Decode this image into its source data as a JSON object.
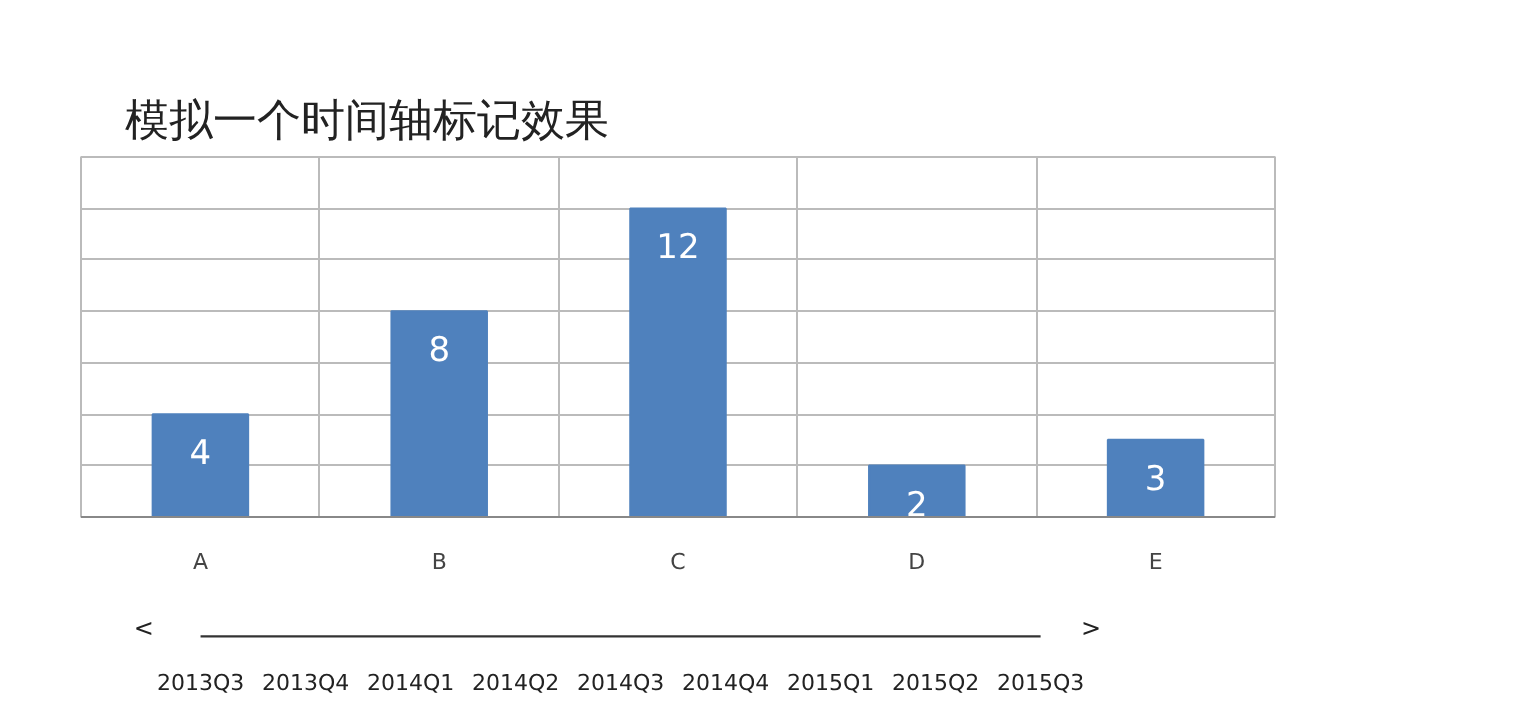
{
  "chart_data": [
    {
      "type": "bar",
      "title": "模拟一个时间轴标记效果",
      "categories": [
        "A",
        "B",
        "C",
        "D",
        "E"
      ],
      "values": [
        4,
        8,
        12,
        2,
        3
      ],
      "color": "#4f81bd",
      "data_labels": true,
      "ylim": [
        0,
        14
      ],
      "yticks": [
        {
          "value": 0,
          "label": null
        },
        {
          "value": 2,
          "label": null
        },
        {
          "value": 4,
          "label": null
        },
        {
          "value": 6,
          "label": null
        },
        {
          "value": 8,
          "label": null
        },
        {
          "value": 10,
          "label": null
        },
        {
          "value": 12,
          "label": null
        }
      ],
      "grid": true,
      "tick_labels": "x"
    },
    {
      "type": "other",
      "color": "#333333",
      "categories": [
        "2013Q3",
        "2013Q4",
        "2014Q1",
        "2014Q2",
        "2014Q3",
        "2014Q4",
        "2015Q1",
        "2015Q2",
        "2015Q3"
      ],
      "annotations": [
        "<",
        ">"
      ]
    }
  ]
}
